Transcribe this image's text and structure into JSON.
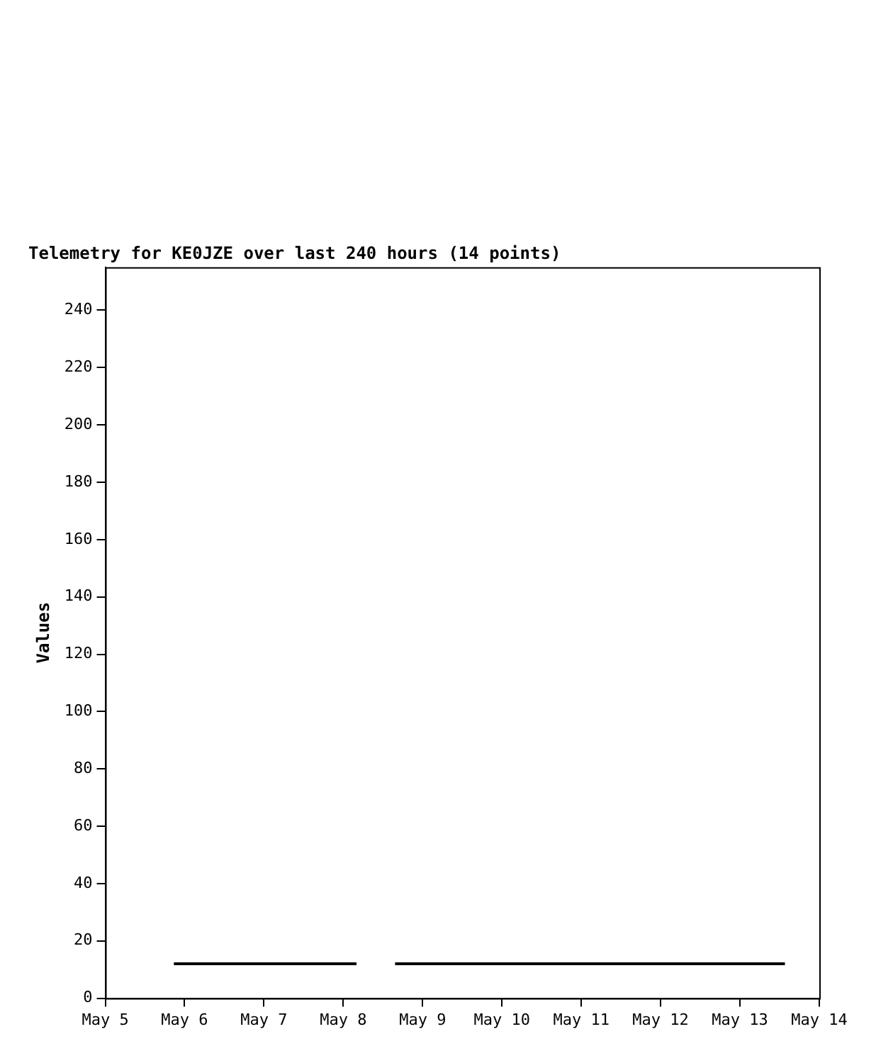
{
  "chart_data": {
    "type": "line",
    "title": "Telemetry for KE0JZE over last 240 hours (14 points)",
    "ylabel": "Values",
    "x": [
      "--05-05T20:45",
      "--05-06T12:00",
      "--05-07T04:00",
      "--05-07T19:00",
      "--05-08T04:00",
      "--05-08T10:00",
      "--05-08T15:40",
      "--05-09T12:00",
      "--05-10T10:00",
      "--05-11T07:00",
      "--05-11T17:00",
      "--05-12T02:00",
      "--05-12T22:00",
      "--05-13T13:36"
    ],
    "series": [
      {
        "color": "#000000",
        "values": [
          12,
          12,
          12,
          12,
          12,
          null,
          12,
          12,
          12,
          12,
          12,
          12,
          12,
          12
        ]
      }
    ],
    "xlim": [
      "--05-05",
      "--05-14"
    ],
    "xticks": [
      {
        "value": "--05-05",
        "label": "May 5"
      },
      {
        "value": "--05-06",
        "label": "May 6"
      },
      {
        "value": "--05-07",
        "label": "May 7"
      },
      {
        "value": "--05-08",
        "label": "May 8"
      },
      {
        "value": "--05-09",
        "label": "May 9"
      },
      {
        "value": "--05-10",
        "label": "May 10"
      },
      {
        "value": "--05-11",
        "label": "May 11"
      },
      {
        "value": "--05-12",
        "label": "May 12"
      },
      {
        "value": "--05-13",
        "label": "May 13"
      },
      {
        "value": "--05-14",
        "label": "May 14"
      }
    ],
    "ylim": [
      0,
      255
    ],
    "yticks": [
      0,
      20,
      40,
      60,
      80,
      100,
      120,
      140,
      160,
      180,
      200,
      220,
      240
    ],
    "marker": "none",
    "line_style": "solid",
    "legend": false
  }
}
